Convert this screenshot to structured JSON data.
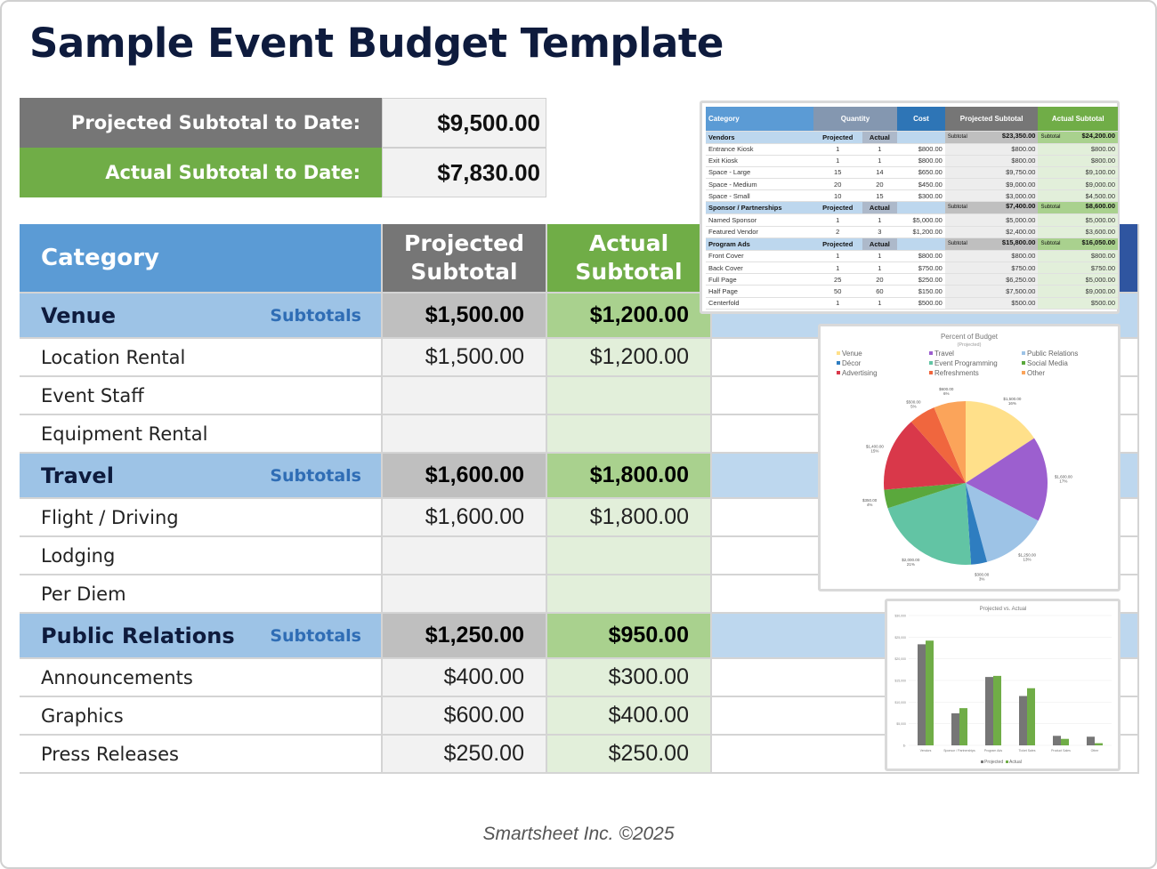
{
  "title": "Sample Event Budget Template",
  "summary": {
    "projected_label": "Projected Subtotal to Date:",
    "projected_value": "$9,500.00",
    "actual_label": "Actual Subtotal to Date:",
    "actual_value": "$7,830.00"
  },
  "colors": {
    "blue": "#5b9bd5",
    "gray": "#767676",
    "green": "#70ad47",
    "navy": "#2f55a0"
  },
  "main": {
    "headers": {
      "category": "Category",
      "projected": "Projected Subtotal",
      "actual": "Actual Subtotal"
    },
    "sections": [
      {
        "name": "Venue",
        "subtotals_label": "Subtotals",
        "projected": "$1,500.00",
        "actual": "$1,200.00",
        "items": [
          {
            "name": "Location Rental",
            "projected": "$1,500.00",
            "actual": "$1,200.00"
          },
          {
            "name": "Event Staff",
            "projected": "",
            "actual": ""
          },
          {
            "name": "Equipment Rental",
            "projected": "",
            "actual": ""
          }
        ]
      },
      {
        "name": "Travel",
        "subtotals_label": "Subtotals",
        "projected": "$1,600.00",
        "actual": "$1,800.00",
        "items": [
          {
            "name": "Flight / Driving",
            "projected": "$1,600.00",
            "actual": "$1,800.00"
          },
          {
            "name": "Lodging",
            "projected": "",
            "actual": ""
          },
          {
            "name": "Per Diem",
            "projected": "",
            "actual": ""
          }
        ]
      },
      {
        "name": "Public Relations",
        "subtotals_label": "Subtotals",
        "projected": "$1,250.00",
        "actual": "$950.00",
        "items": [
          {
            "name": "Announcements",
            "projected": "$400.00",
            "actual": "$300.00"
          },
          {
            "name": "Graphics",
            "projected": "$600.00",
            "actual": "$400.00"
          },
          {
            "name": "Press Releases",
            "projected": "$250.00",
            "actual": "$250.00"
          }
        ]
      }
    ]
  },
  "inset": {
    "headers": [
      "Category",
      "Quantity",
      "Cost",
      "Projected Subtotal",
      "Actual Subtotal"
    ],
    "groups": [
      {
        "name": "Vendors",
        "q_proj": "Projected",
        "q_act": "Actual",
        "sub_label": "Subtotal",
        "proj": "$23,350.00",
        "act": "$24,200.00",
        "rows": [
          [
            "Entrance Kiosk",
            "1",
            "1",
            "$800.00",
            "$800.00",
            "$800.00"
          ],
          [
            "Exit Kiosk",
            "1",
            "1",
            "$800.00",
            "$800.00",
            "$800.00"
          ],
          [
            "Space - Large",
            "15",
            "14",
            "$650.00",
            "$9,750.00",
            "$9,100.00"
          ],
          [
            "Space - Medium",
            "20",
            "20",
            "$450.00",
            "$9,000.00",
            "$9,000.00"
          ],
          [
            "Space - Small",
            "10",
            "15",
            "$300.00",
            "$3,000.00",
            "$4,500.00"
          ]
        ]
      },
      {
        "name": "Sponsor / Partnerships",
        "q_proj": "Projected",
        "q_act": "Actual",
        "sub_label": "Subtotal",
        "proj": "$7,400.00",
        "act": "$8,600.00",
        "rows": [
          [
            "Named Sponsor",
            "1",
            "1",
            "$5,000.00",
            "$5,000.00",
            "$5,000.00"
          ],
          [
            "Featured Vendor",
            "2",
            "3",
            "$1,200.00",
            "$2,400.00",
            "$3,600.00"
          ]
        ]
      },
      {
        "name": "Program Ads",
        "q_proj": "Projected",
        "q_act": "Actual",
        "sub_label": "Subtotal",
        "proj": "$15,800.00",
        "act": "$16,050.00",
        "rows": [
          [
            "Front Cover",
            "1",
            "1",
            "$800.00",
            "$800.00",
            "$800.00"
          ],
          [
            "Back Cover",
            "1",
            "1",
            "$750.00",
            "$750.00",
            "$750.00"
          ],
          [
            "Full Page",
            "25",
            "20",
            "$250.00",
            "$6,250.00",
            "$5,000.00"
          ],
          [
            "Half Page",
            "50",
            "60",
            "$150.00",
            "$7,500.00",
            "$9,000.00"
          ],
          [
            "Centerfold",
            "1",
            "1",
            "$500.00",
            "$500.00",
            "$500.00"
          ]
        ]
      }
    ]
  },
  "chart_data": [
    {
      "type": "pie",
      "title": "Percent of Budget",
      "subtitle": "(Projected)",
      "legend": "top",
      "slices": [
        {
          "name": "Venue",
          "value": 1500,
          "label": "$1,500.00",
          "pct": "16%",
          "color": "#ffe08a"
        },
        {
          "name": "Travel",
          "value": 1600,
          "label": "$1,600.00",
          "pct": "17%",
          "color": "#9c5fcf"
        },
        {
          "name": "Public Relations",
          "value": 1250,
          "label": "$1,250.00",
          "pct": "13%",
          "color": "#9dc3e6"
        },
        {
          "name": "Décor",
          "value": 300,
          "label": "$300.00",
          "pct": "3%",
          "color": "#2e7dc0"
        },
        {
          "name": "Event Programming",
          "value": 2000,
          "label": "$2,000.00",
          "pct": "21%",
          "color": "#62c4a4"
        },
        {
          "name": "Social Media",
          "value": 350,
          "label": "$350.00",
          "pct": "4%",
          "color": "#5aa83c"
        },
        {
          "name": "Advertising",
          "value": 1400,
          "label": "$1,400.00",
          "pct": "15%",
          "color": "#d9384a"
        },
        {
          "name": "Refreshments",
          "value": 500,
          "label": "$500.00",
          "pct": "5%",
          "color": "#f0663e"
        },
        {
          "name": "Other",
          "value": 600,
          "label": "$600.00",
          "pct": "6%",
          "color": "#fba45a"
        }
      ]
    },
    {
      "type": "bar",
      "title": "Projected vs. Actual",
      "ylim": [
        0,
        30000
      ],
      "grid": true,
      "legend": "bottom",
      "yticks": [
        "$-",
        "$5,000",
        "$10,000",
        "$15,000",
        "$20,000",
        "$25,000",
        "$30,000"
      ],
      "categories": [
        "Vendors",
        "Sponsor / Partnerships",
        "Program Ads",
        "Ticket Sales",
        "Product Sales",
        "Other"
      ],
      "series": [
        {
          "name": "Projected",
          "color": "#767676",
          "values": [
            23350,
            7400,
            15800,
            11400,
            2200,
            2000
          ]
        },
        {
          "name": "Actual",
          "color": "#70ad47",
          "values": [
            24200,
            8600,
            16050,
            13200,
            1500,
            500
          ]
        }
      ]
    }
  ],
  "footer": "Smartsheet Inc. ©2025"
}
